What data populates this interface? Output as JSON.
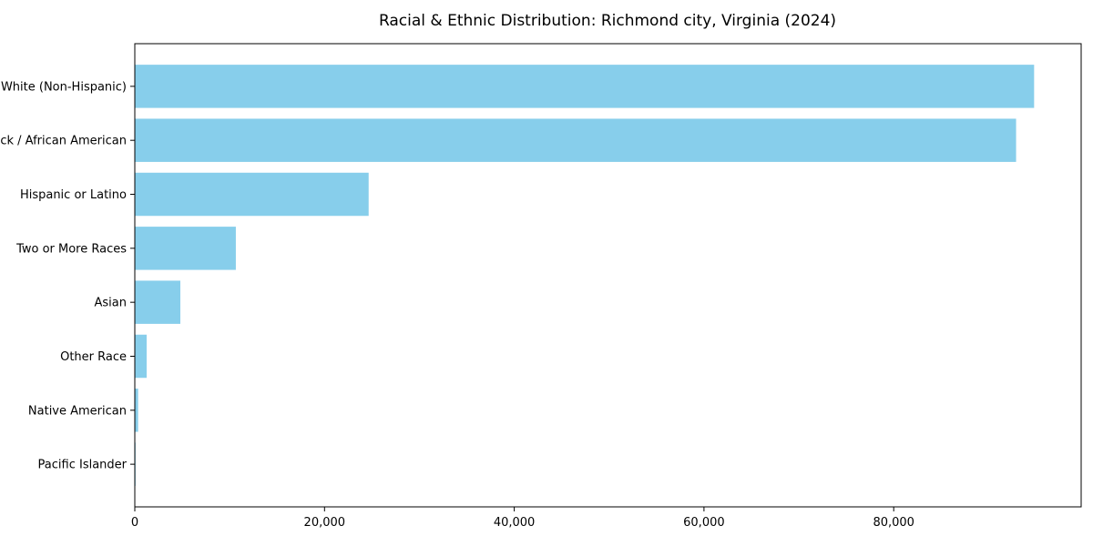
{
  "chart_data": {
    "type": "bar",
    "orientation": "horizontal",
    "title": "Racial & Ethnic Distribution: Richmond city, Virginia (2024)",
    "categories": [
      "White (Non-Hispanic)",
      "Black / African American",
      "Hispanic or Latino",
      "Two or More Races",
      "Asian",
      "Other Race",
      "Native American",
      "Pacific Islander"
    ],
    "values": [
      94800,
      92900,
      24650,
      10650,
      4800,
      1250,
      350,
      80
    ],
    "xlabel": "",
    "ylabel": "",
    "xlim": [
      0,
      99760
    ],
    "xticks": [
      0,
      20000,
      40000,
      60000,
      80000
    ],
    "xtick_labels": [
      "0",
      "20,000",
      "40,000",
      "60,000",
      "80,000"
    ],
    "grid": false,
    "legend": "none",
    "bar_color": "#87CEEB",
    "frame_color": "#000000",
    "text_color": "#000000"
  }
}
